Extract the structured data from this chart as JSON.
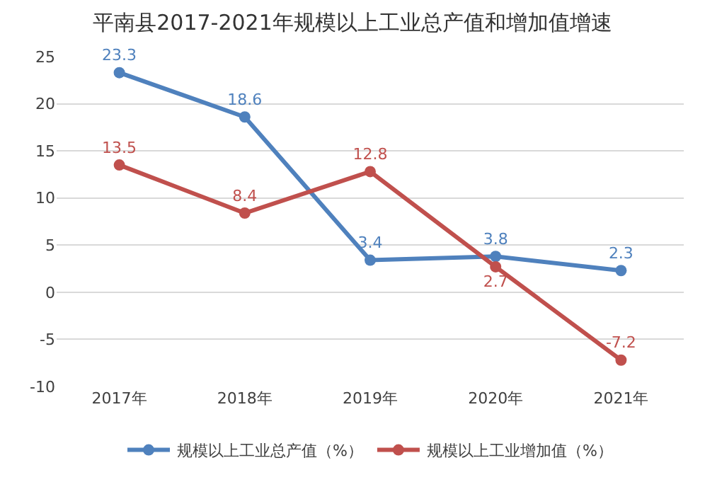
{
  "chart_data": {
    "type": "line",
    "title": "平南县2017-2021年规模以上工业总产值和增加值增速",
    "categories": [
      "2017年",
      "2018年",
      "2019年",
      "2020年",
      "2021年"
    ],
    "series": [
      {
        "name": "规模以上工业总产值（%）",
        "color": "#4f81bd",
        "values": [
          23.3,
          18.6,
          3.4,
          3.8,
          2.3
        ]
      },
      {
        "name": "规模以上工业增加值（%）",
        "color": "#c0504d",
        "values": [
          13.5,
          8.4,
          12.8,
          2.7,
          -7.2
        ]
      }
    ],
    "ylim": [
      -10,
      25
    ],
    "yticks": [
      -10,
      -5,
      0,
      5,
      10,
      15,
      20,
      25
    ],
    "grid": "y",
    "legend": "bottom",
    "marker": "circle",
    "line_style": "solid",
    "data_labels": true
  }
}
